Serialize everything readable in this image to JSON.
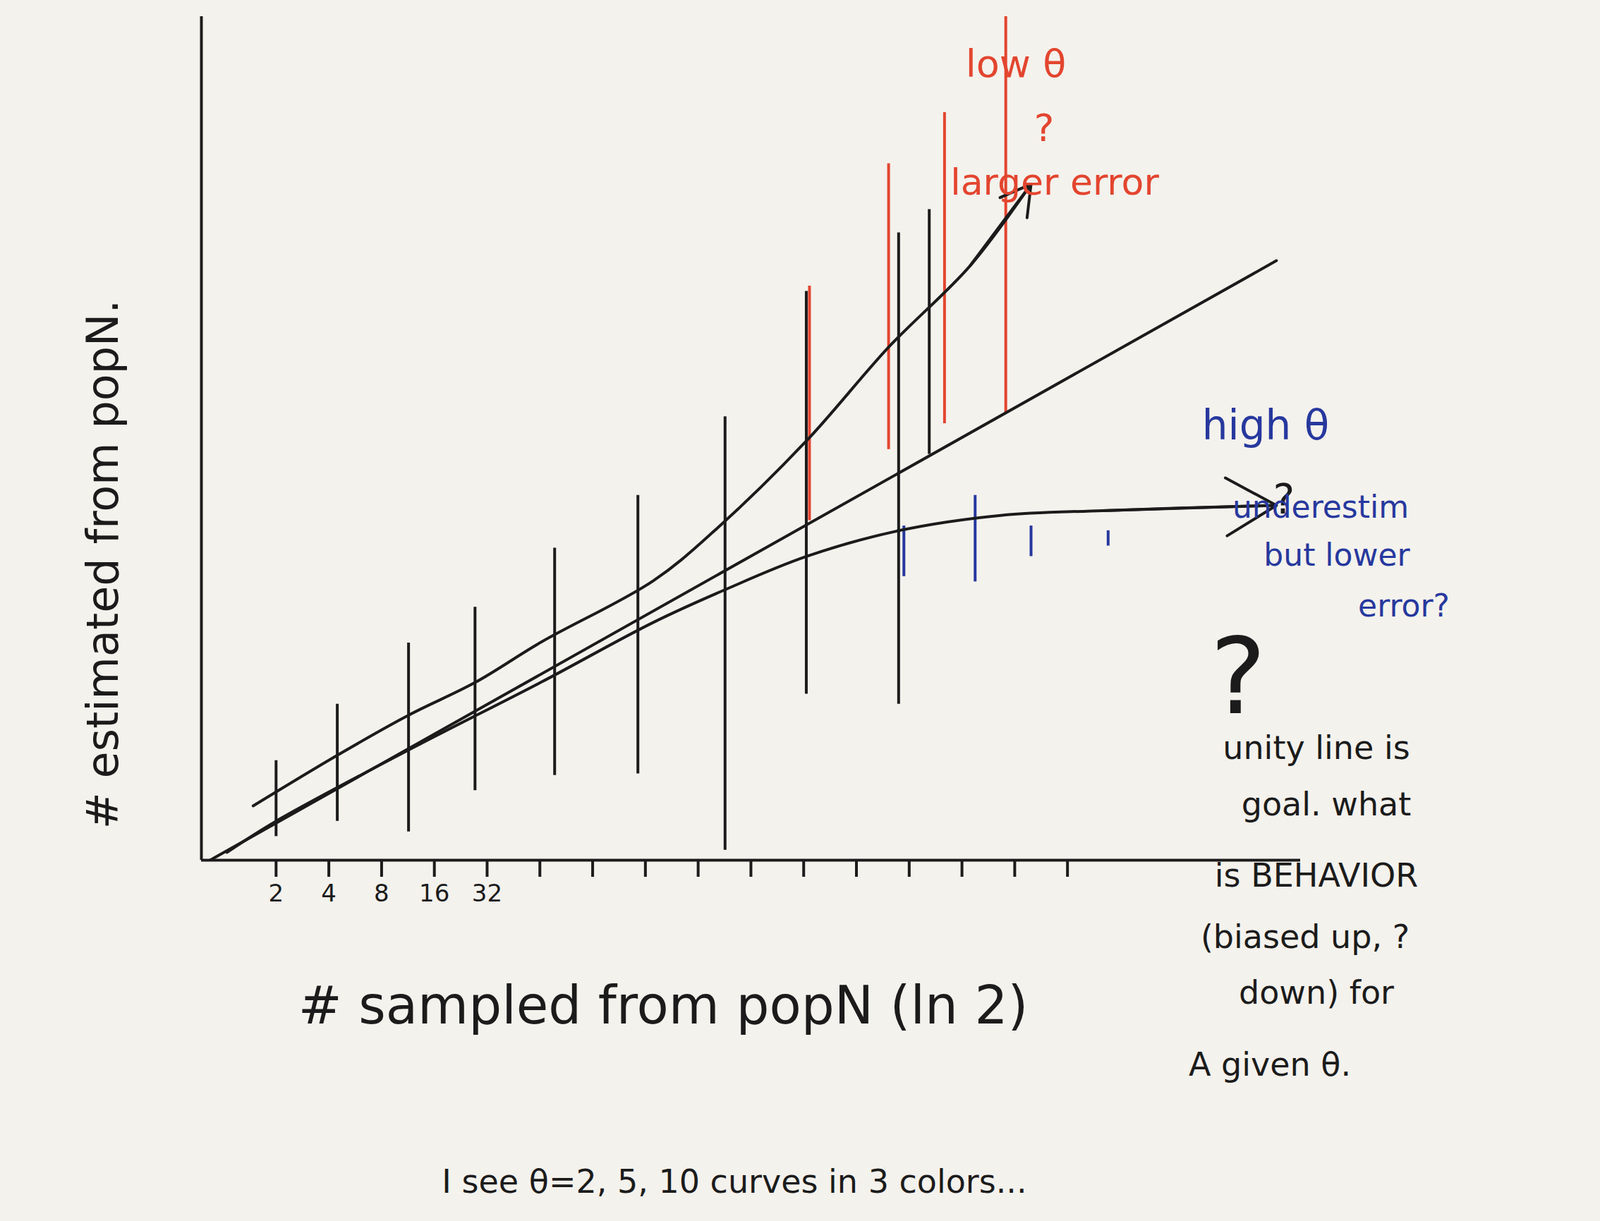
{
  "chart_data": {
    "type": "line",
    "x_label": "# sampled from popN (ln 2)",
    "y_label": "# estimated from popN.",
    "log": "x",
    "grid": false,
    "tick_labels": "x",
    "xlim": [
      0.75,
      1400000
    ],
    "ylim": [
      0,
      16
    ],
    "xticks": [
      2,
      4,
      8,
      16,
      32,
      {
        "value": 64,
        "label": null
      },
      {
        "value": 128,
        "label": null
      },
      {
        "value": 256,
        "label": null
      },
      {
        "value": 512,
        "label": null
      },
      {
        "value": 1024,
        "label": null
      },
      {
        "value": 2048,
        "label": null
      },
      {
        "value": 4096,
        "label": null
      },
      {
        "value": 8192,
        "label": null
      },
      {
        "value": 16384,
        "label": null
      },
      {
        "value": 32768,
        "label": null
      },
      {
        "value": 65536,
        "label": null
      }
    ],
    "series": [
      {
        "color": "#1b1b1b",
        "marker": "none",
        "x": [
          0.84,
          1020000
        ],
        "values": [
          0,
          11.37
        ]
      },
      {
        "color": "#1b1b1b",
        "marker": "arrow",
        "x": [
          1.48,
          4.47,
          11.4,
          27.3,
          65.4,
          284,
          635,
          2120,
          6250,
          18300,
          40600
        ],
        "values": [
          1.03,
          1.99,
          2.75,
          3.37,
          4.14,
          5.3,
          6.25,
          7.95,
          9.73,
          11.28,
          12.82
        ]
      },
      {
        "color": "#1b1b1b",
        "marker": "arrow",
        "x": [
          1.05,
          2,
          11.4,
          65.4,
          284,
          729,
          2120,
          7130,
          27200,
          104000,
          1020000
        ],
        "values": [
          0.15,
          0.74,
          2.09,
          3.38,
          4.51,
          5.13,
          5.76,
          6.25,
          6.54,
          6.63,
          6.73
        ]
      }
    ],
    "error_bars": [
      {
        "color": "#1b1b1b",
        "x": [
          2,
          4.47,
          11.4,
          27.3,
          77.7,
          232,
          729,
          2120,
          7130,
          10660
        ],
        "low": [
          0.45,
          0.74,
          0.54,
          1.32,
          1.61,
          1.64,
          0.19,
          3.15,
          2.96,
          7.7
        ],
        "high": [
          1.89,
          2.96,
          4.12,
          4.8,
          5.92,
          6.92,
          8.41,
          10.79,
          11.9,
          12.34
        ]
      },
      {
        "color": "#e3452f",
        "x": [
          2210,
          6250,
          13030,
          29130
        ],
        "low": [
          6.44,
          7.79,
          8.28,
          8.47
        ],
        "high": [
          10.89,
          13.21,
          14.18,
          16.3
        ]
      },
      {
        "color": "#27389e",
        "x": [
          7640,
          19480,
          40600,
          111800
        ],
        "low": [
          5.38,
          5.28,
          5.76,
          5.96
        ],
        "high": [
          6.34,
          6.92,
          6.34,
          6.25
        ]
      }
    ],
    "annotations": [
      {
        "text": "low θ",
        "color": "#e3452f"
      },
      {
        "text": "?",
        "color": "#e3452f"
      },
      {
        "text": "larger error",
        "color": "#e3452f"
      },
      {
        "text": "high θ",
        "color": "#27389e"
      },
      {
        "text": "?",
        "color": "#1b1b1b"
      },
      {
        "text": "underestim",
        "color": "#27389e"
      },
      {
        "text": "but lower",
        "color": "#27389e"
      },
      {
        "text": "error?",
        "color": "#27389e"
      },
      {
        "text": "?",
        "color": "#1b1b1b"
      },
      {
        "text": "unity line is",
        "color": "#1b1b1b"
      },
      {
        "text": "goal. what",
        "color": "#1b1b1b"
      },
      {
        "text": "is BEHAVIOR",
        "color": "#1b1b1b"
      },
      {
        "text": "(biased up, ?",
        "color": "#1b1b1b"
      },
      {
        "text": "down) for",
        "color": "#1b1b1b"
      },
      {
        "text": "A given θ.",
        "color": "#1b1b1b"
      },
      {
        "text": "I see θ=2, 5, 10 curves in 3 colors...",
        "color": "#1b1b1b"
      }
    ]
  }
}
